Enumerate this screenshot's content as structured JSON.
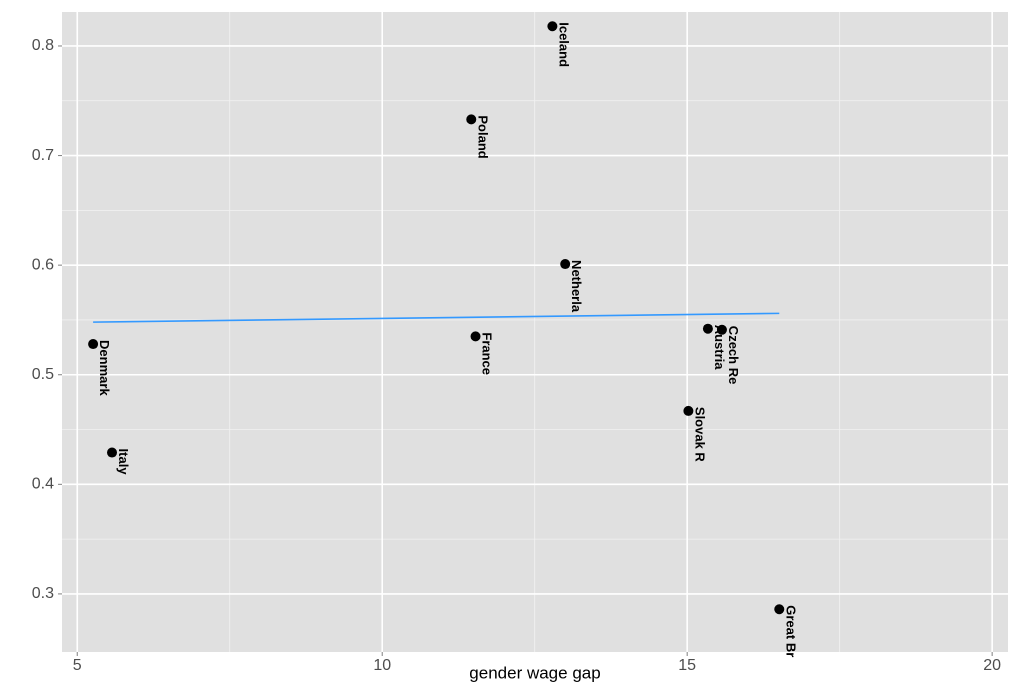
{
  "chart_data": {
    "type": "scatter",
    "x_label": "gender wage gap",
    "labels": [
      "Iceland",
      "Poland",
      "Netherla",
      "France",
      "Denmark",
      "Italy",
      "Austria",
      "Czech Re",
      "Slovak R",
      "Great Br"
    ],
    "x": [
      12.79,
      11.46,
      13.0,
      11.53,
      5.26,
      5.57,
      15.34,
      15.57,
      15.02,
      16.51
    ],
    "y": [
      0.818,
      0.733,
      0.601,
      0.535,
      0.528,
      0.429,
      0.542,
      0.541,
      0.467,
      0.286
    ],
    "color": "#000000",
    "trend_line": {
      "color": "#3399ff",
      "x": [
        5.26,
        16.51
      ],
      "y": [
        0.548,
        0.556
      ]
    },
    "xlim": [
      4.75,
      20.26
    ],
    "ylim": [
      0.247,
      0.831
    ],
    "xticks": [
      5,
      10,
      15,
      20
    ],
    "yticks": [
      0.3,
      0.4,
      0.5,
      0.6,
      0.7,
      0.8
    ],
    "grid": true,
    "minor_grid": true
  }
}
